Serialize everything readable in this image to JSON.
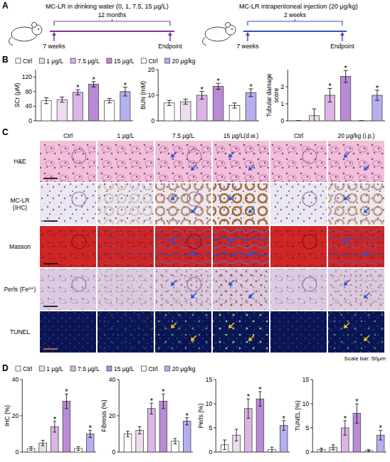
{
  "chart_data": [
    {
      "type": "bar",
      "y_label": "SCr (μM)",
      "categories": [
        "Ctrl",
        "1 μg/L",
        "7.5 μg/L",
        "15 μg/L",
        "Ctrl",
        "20 μg/kg"
      ],
      "values": [
        55,
        58,
        78,
        100,
        55,
        80
      ],
      "errors": [
        8,
        7,
        7,
        7,
        6,
        12
      ],
      "colors": [
        "#ffffff",
        "#f0dcf0",
        "#dcb4e6",
        "#b98bd6",
        "#ffffff",
        "#b4b0f0"
      ],
      "ylim": [
        0,
        140
      ],
      "yticks": [
        0,
        40,
        80,
        120
      ],
      "tick_labels": "y",
      "legend": "top",
      "annotations": [
        {
          "index": 2,
          "text": "*"
        },
        {
          "index": 3,
          "text": "*"
        },
        {
          "index": 5,
          "text": "*"
        }
      ]
    },
    {
      "type": "bar",
      "y_label": "BUN (mM)",
      "categories": [
        "Ctrl",
        "1 μg/L",
        "7.5 μg/L",
        "15 μg/L",
        "Ctrl",
        "20 μg/kg"
      ],
      "values": [
        7,
        7.5,
        10,
        13.5,
        6,
        11
      ],
      "errors": [
        1,
        1,
        1.5,
        1.2,
        1,
        1.5
      ],
      "colors": [
        "#ffffff",
        "#f0dcf0",
        "#dcb4e6",
        "#b98bd6",
        "#ffffff",
        "#b4b0f0"
      ],
      "ylim": [
        0,
        20
      ],
      "yticks": [
        0,
        10,
        20
      ],
      "tick_labels": "y",
      "annotations": [
        {
          "index": 2,
          "text": "*"
        },
        {
          "index": 3,
          "text": "*"
        },
        {
          "index": 5,
          "text": "*"
        }
      ]
    },
    {
      "type": "bar",
      "y_label": "Tubular damage score",
      "categories": [
        "Ctrl",
        "1 μg/L",
        "7.5 μg/L",
        "15 μg/L",
        "Ctrl",
        "20 μg/kg"
      ],
      "values": [
        0,
        0.3,
        1.5,
        2.6,
        0,
        1.5
      ],
      "errors": [
        0,
        0.4,
        0.4,
        0.35,
        0,
        0.3
      ],
      "colors": [
        "#ffffff",
        "#f0dcf0",
        "#dcb4e6",
        "#b98bd6",
        "#ffffff",
        "#b4b0f0"
      ],
      "ylim": [
        0,
        3
      ],
      "yticks": [
        0,
        1,
        2
      ],
      "tick_labels": "y",
      "annotations": [
        {
          "index": 2,
          "text": "*"
        },
        {
          "index": 3,
          "text": "*"
        },
        {
          "index": 5,
          "text": "*"
        }
      ]
    },
    {
      "type": "bar",
      "y_label": "IHC (%)",
      "categories": [
        "Ctrl",
        "1 μg/L",
        "7.5 μg/L",
        "15 μg/L",
        "Ctrl",
        "20 μg/kg"
      ],
      "values": [
        2,
        5,
        14,
        28,
        2,
        10
      ],
      "errors": [
        1,
        1.5,
        3,
        4,
        1,
        2
      ],
      "colors": [
        "#ffffff",
        "#f0dcf0",
        "#dcb4e6",
        "#b98bd6",
        "#ffffff",
        "#b4b0f0"
      ],
      "ylim": [
        0,
        40
      ],
      "yticks": [
        0,
        20,
        40
      ],
      "tick_labels": "y",
      "legend": "top",
      "annotations": [
        {
          "index": 2,
          "text": "*"
        },
        {
          "index": 3,
          "text": "*"
        },
        {
          "index": 5,
          "text": "*"
        }
      ]
    },
    {
      "type": "bar",
      "y_label": "Fibrosis (%)",
      "categories": [
        "Ctrl",
        "1 μg/L",
        "7.5 μg/L",
        "15 μg/L",
        "Ctrl",
        "20 μg/kg"
      ],
      "values": [
        10,
        12,
        24,
        28,
        6,
        17
      ],
      "errors": [
        1.5,
        2,
        3,
        4,
        1.5,
        2
      ],
      "colors": [
        "#ffffff",
        "#f0dcf0",
        "#dcb4e6",
        "#b98bd6",
        "#ffffff",
        "#b4b0f0"
      ],
      "ylim": [
        0,
        40
      ],
      "yticks": [
        0,
        20,
        40
      ],
      "tick_labels": "y",
      "annotations": [
        {
          "index": 2,
          "text": "*"
        },
        {
          "index": 3,
          "text": "*"
        },
        {
          "index": 5,
          "text": "*"
        }
      ]
    },
    {
      "type": "bar",
      "y_label": "Perls (%)",
      "categories": [
        "Ctrl",
        "1 μg/L",
        "7.5 μg/L",
        "15 μg/L",
        "Ctrl",
        "20 μg/kg"
      ],
      "values": [
        1.5,
        3.5,
        9,
        11,
        0.5,
        5.5
      ],
      "errors": [
        1,
        1.2,
        2,
        1.5,
        0.5,
        1
      ],
      "colors": [
        "#ffffff",
        "#f0dcf0",
        "#dcb4e6",
        "#b98bd6",
        "#ffffff",
        "#b4b0f0"
      ],
      "ylim": [
        0,
        15
      ],
      "yticks": [
        0,
        5,
        10,
        15
      ],
      "tick_labels": "y",
      "annotations": [
        {
          "index": 2,
          "text": "*"
        },
        {
          "index": 3,
          "text": "*"
        },
        {
          "index": 5,
          "text": "*"
        }
      ]
    },
    {
      "type": "bar",
      "y_label": "TUNEL (%)",
      "categories": [
        "Ctrl",
        "1 μg/L",
        "7.5 μg/L",
        "15 μg/L",
        "Ctrl",
        "20 μg/kg"
      ],
      "values": [
        0.5,
        1,
        5,
        8,
        0.3,
        3.5
      ],
      "errors": [
        0.3,
        0.5,
        1.5,
        2,
        0.2,
        1
      ],
      "colors": [
        "#ffffff",
        "#f0dcf0",
        "#dcb4e6",
        "#b98bd6",
        "#ffffff",
        "#b4b0f0"
      ],
      "ylim": [
        0,
        15
      ],
      "yticks": [
        0,
        5,
        10,
        15
      ],
      "tick_labels": "y",
      "annotations": [
        {
          "index": 2,
          "text": "*"
        },
        {
          "index": 3,
          "text": "*"
        },
        {
          "index": 5,
          "text": "*"
        }
      ]
    }
  ],
  "figure": {
    "panel_labels": [
      "A",
      "B",
      "C",
      "D"
    ],
    "design": [
      {
        "title": "MC-LR in drinking water (0, 1, 7.5, 15 μg/L)",
        "duration": "12 months",
        "start": "7 weeks",
        "end": "Endpoint"
      },
      {
        "title": "MC-LR intraperitoneal injection (20 μg/kg)",
        "duration": "2 weeks",
        "start": "7 weeks",
        "end": "Endpoint"
      }
    ],
    "micrographs": {
      "rows": [
        "H&E",
        "MC-LR (IHC)",
        "Masson",
        "Perls (Fe³⁺)",
        "TUNEL"
      ],
      "columns": [
        "Ctrl",
        "1 μg/L",
        "7.5 μg/L",
        "15 μg/L(d.w.)",
        "Ctrl",
        "20 μg/kg (i.p.)"
      ],
      "scale_bar": "Scale bar: 50μm"
    }
  }
}
